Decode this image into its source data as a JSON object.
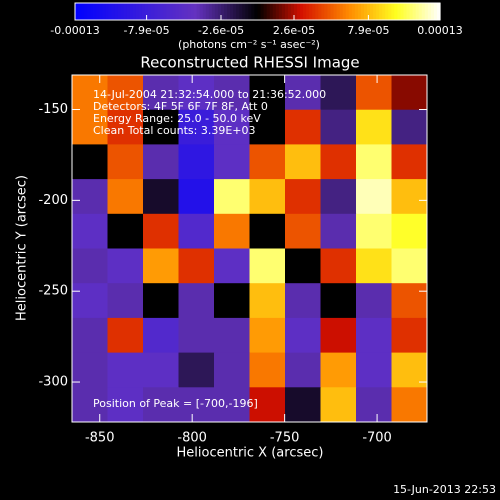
{
  "chart_data": {
    "type": "heatmap",
    "title": "Reconstructed RHESSI Image",
    "annotations": [
      "14-Jul-2004 21:32:54.000 to 21:36:52.000",
      "Detectors: 4F 5F 6F 7F 8F, Att 0",
      "Energy Range: 25.0 - 50.0 keV",
      "Clean     Total counts: 3.39E+03"
    ],
    "peak_label": "Position of Peak = [-700,-196]",
    "x_label": "Heliocentric X (arcsec)",
    "y_label": "Heliocentric Y (arcsec)",
    "colorbar_label": "(photons cm⁻² s⁻¹ asec⁻²)",
    "timestamp": "15-Jun-2013 22:53",
    "xlim": [
      -865,
      -673
    ],
    "xticks": [
      -850,
      -800,
      -750,
      -700
    ],
    "ylim": [
      -322,
      -131
    ],
    "yticks": [
      -150,
      -200,
      -250,
      -300
    ],
    "zlim": [
      -0.00013,
      0.00013
    ],
    "zticks": [
      -0.00013,
      {
        "value": -7.9e-05,
        "label": "-7.9e-05"
      },
      {
        "value": -2.6e-05,
        "label": "-2.6e-05"
      },
      {
        "value": 2.6e-05,
        "label": "2.6e-05"
      },
      {
        "value": 7.9e-05,
        "label": "7.9e-05"
      },
      0.00013
    ],
    "colormap": [
      "#0000ff",
      "#6432c0",
      "#000000",
      "#d41000",
      "#ff8a00",
      "#ffff20",
      "#ffffff"
    ],
    "z": [
      [
        6e-05,
        5e-05,
        -4e-05,
        -5e-05,
        -4e-05,
        0,
        -4e-05,
        -2e-05,
        5e-05,
        2e-05
      ],
      [
        6e-05,
        4e-05,
        0,
        -8e-05,
        -5e-05,
        0,
        4e-05,
        -3e-05,
        9e-05,
        -3e-05
      ],
      [
        0,
        5e-05,
        -4e-05,
        -9e-05,
        -5e-05,
        5e-05,
        8e-05,
        4e-05,
        0.00011,
        4e-05
      ],
      [
        -4e-05,
        6e-05,
        -1e-05,
        -0.0001,
        0.00011,
        8e-05,
        4e-05,
        -3e-05,
        0.00012,
        8e-05
      ],
      [
        -5e-05,
        0,
        4e-05,
        -6e-05,
        6e-05,
        0,
        5e-05,
        -4e-05,
        0.00011,
        0.0001
      ],
      [
        -4e-05,
        -5e-05,
        7e-05,
        4e-05,
        -5e-05,
        0.00011,
        0,
        4e-05,
        9e-05,
        0.00011
      ],
      [
        -5e-05,
        -4e-05,
        0,
        -4e-05,
        0,
        8e-05,
        -4e-05,
        0,
        -4e-05,
        5e-05
      ],
      [
        -4e-05,
        4e-05,
        -6e-05,
        -4e-05,
        -4e-05,
        7e-05,
        -5e-05,
        3e-05,
        -5e-05,
        4e-05
      ],
      [
        -4e-05,
        -5e-05,
        -5e-05,
        -2e-05,
        -4e-05,
        6e-05,
        -4e-05,
        7e-05,
        -5e-05,
        8e-05
      ],
      [
        -4e-05,
        -5e-05,
        -4e-05,
        -4e-05,
        -4e-05,
        3e-05,
        -1e-05,
        8e-05,
        -4e-05,
        6e-05
      ]
    ]
  }
}
